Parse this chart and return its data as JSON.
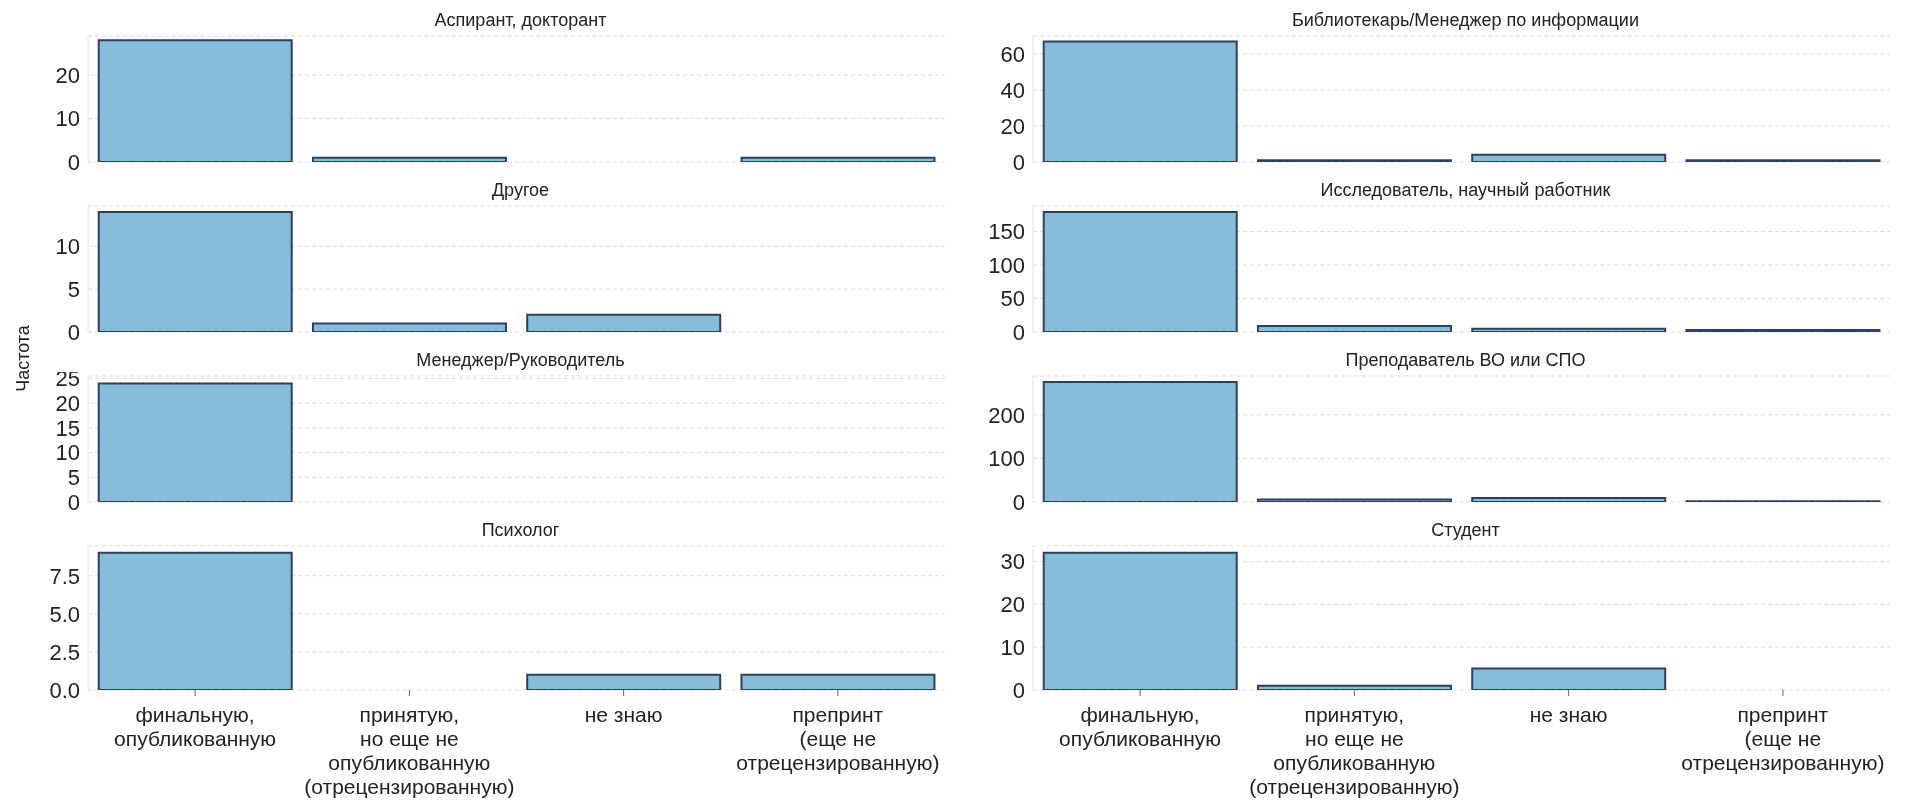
{
  "chart_data": [
    {
      "type": "bar",
      "title": "Аспирант, докторант",
      "categories": [
        null,
        null,
        null,
        null
      ],
      "values": [
        28,
        1,
        null,
        1
      ],
      "color": "#87bdd8",
      "ylim": [
        0,
        29
      ],
      "yticks": [
        0,
        10,
        20
      ],
      "grid": "y",
      "tick_labels": "y"
    },
    {
      "type": "bar",
      "title": "Библиотекарь/Менеджер по информации",
      "categories": [
        null,
        null,
        null,
        null
      ],
      "values": [
        67,
        1,
        4,
        1
      ],
      "color": "#87bdd8",
      "ylim": [
        0,
        70
      ],
      "yticks": [
        0,
        20,
        40,
        60
      ],
      "grid": "y",
      "tick_labels": "y"
    },
    {
      "type": "bar",
      "title": "Другое",
      "categories": [
        null,
        null,
        null,
        null
      ],
      "values": [
        14,
        1,
        2,
        null
      ],
      "color": "#87bdd8",
      "ylim": [
        0,
        14.7
      ],
      "yticks": [
        0,
        5,
        10
      ],
      "grid": "y",
      "tick_labels": "y"
    },
    {
      "type": "bar",
      "title": "Исследователь, научный работник",
      "categories": [
        null,
        null,
        null,
        null
      ],
      "values": [
        179,
        9,
        5,
        3
      ],
      "color": "#87bdd8",
      "ylim": [
        0,
        188
      ],
      "yticks": [
        0,
        50,
        100,
        150
      ],
      "grid": "y",
      "tick_labels": "y"
    },
    {
      "type": "bar",
      "title": "Менеджер/Руководитель",
      "ylabel": "Частота",
      "categories": [
        null,
        null,
        null,
        null
      ],
      "values": [
        24,
        null,
        null,
        null
      ],
      "color": "#87bdd8",
      "ylim": [
        0,
        25.5
      ],
      "yticks": [
        0,
        5,
        10,
        15,
        20,
        25
      ],
      "grid": "y",
      "tick_labels": "y"
    },
    {
      "type": "bar",
      "title": "Преподаватель ВО или СПО",
      "categories": [
        null,
        null,
        null,
        null
      ],
      "values": [
        275,
        6,
        9,
        2
      ],
      "color": "#87bdd8",
      "ylim": [
        0,
        289
      ],
      "yticks": [
        0,
        100,
        200
      ],
      "grid": "y",
      "tick_labels": "y"
    },
    {
      "type": "bar",
      "title": "Психолог",
      "categories": [
        "финальную, опубликованную",
        "принятую, но еще не опубликованную (отрецензированную)",
        "не знаю",
        "препринт (еще не отрецензированную)"
      ],
      "values": [
        9,
        null,
        1,
        1
      ],
      "color": "#87bdd8",
      "ylim": [
        0,
        9.45
      ],
      "yticks": [
        {
          "value": 0,
          "label": "0.0"
        },
        2.5,
        {
          "value": 5,
          "label": "5.0"
        },
        7.5
      ],
      "grid": "y"
    },
    {
      "type": "bar",
      "title": "Студент",
      "categories": [
        "финальную, опубликованную",
        "принятую, но еще не опубликованную (отрецензированную)",
        "не знаю",
        "препринт (еще не отрецензированную)"
      ],
      "values": [
        32,
        1,
        5,
        null
      ],
      "color": "#87bdd8",
      "ylim": [
        0,
        33.6
      ],
      "yticks": [
        0,
        10,
        20,
        30
      ],
      "grid": "y"
    }
  ]
}
